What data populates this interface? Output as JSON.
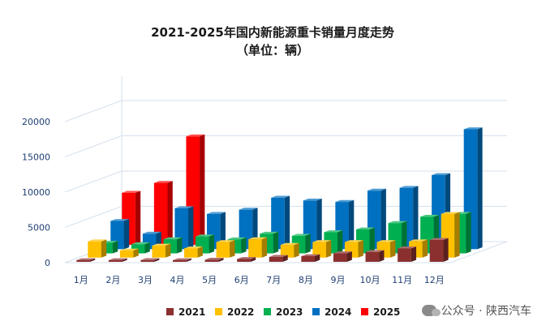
{
  "chart_data": {
    "type": "bar",
    "title": "2021-2025年国内新能源重卡销量月度走势",
    "subtitle": "（单位：辆）",
    "xlabel": "",
    "ylabel": "",
    "ylim": [
      0,
      20000
    ],
    "yticks": [
      0,
      5000,
      10000,
      15000,
      20000
    ],
    "grid": true,
    "legend_position": "bottom",
    "categories": [
      "1月",
      "2月",
      "3月",
      "4月",
      "5月",
      "6月",
      "7月",
      "8月",
      "9月",
      "10月",
      "11月",
      "12月"
    ],
    "series": [
      {
        "name": "2021",
        "color": "#8b2f2f",
        "values": [
          150,
          120,
          250,
          200,
          300,
          400,
          700,
          800,
          1200,
          1400,
          1900,
          3100
        ]
      },
      {
        "name": "2022",
        "color": "#ffc000",
        "values": [
          2300,
          1000,
          1700,
          1300,
          2200,
          2600,
          1800,
          2200,
          2200,
          2200,
          2300,
          6200
        ]
      },
      {
        "name": "2023",
        "color": "#00b050",
        "values": [
          1500,
          1300,
          2000,
          2400,
          2000,
          2800,
          2500,
          3000,
          3400,
          4300,
          5200,
          5600
        ]
      },
      {
        "name": "2024",
        "color": "#0070c0",
        "values": [
          4000,
          2200,
          5800,
          5000,
          5600,
          7300,
          6900,
          6700,
          8300,
          8700,
          10500,
          17000
        ]
      },
      {
        "name": "2025",
        "color": "#ff0000",
        "values": [
          7400,
          8800,
          15400,
          null,
          null,
          null,
          null,
          null,
          null,
          null,
          null,
          null
        ]
      }
    ]
  },
  "watermark": {
    "icon": "wechat-icon",
    "text": "公众号 · 陕西汽车"
  }
}
